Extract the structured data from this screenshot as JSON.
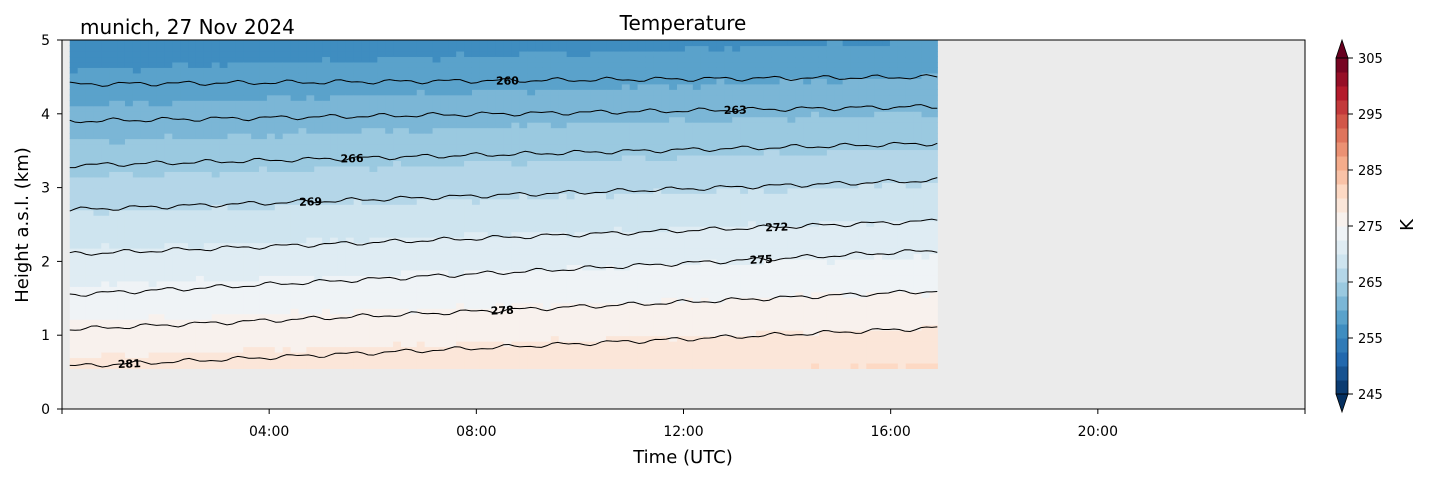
{
  "chart_data": {
    "type": "heatmap",
    "title": "Temperature",
    "location_date": "munich, 27 Nov 2024",
    "xlabel": "Time (UTC)",
    "ylabel": "Height a.s.l. (km)",
    "xlim_hours": [
      0,
      24
    ],
    "ylim_km": [
      0,
      5
    ],
    "x_ticks": [
      {
        "hour": 4,
        "label": "04:00"
      },
      {
        "hour": 8,
        "label": "08:00"
      },
      {
        "hour": 12,
        "label": "12:00"
      },
      {
        "hour": 16,
        "label": "16:00"
      },
      {
        "hour": 20,
        "label": "20:00"
      }
    ],
    "y_ticks": [
      {
        "value": 0,
        "label": "0"
      },
      {
        "value": 1,
        "label": "1"
      },
      {
        "value": 2,
        "label": "2"
      },
      {
        "value": 3,
        "label": "3"
      },
      {
        "value": 4,
        "label": "4"
      },
      {
        "value": 5,
        "label": "5"
      }
    ],
    "data_time_range_hours": [
      0.15,
      16.9
    ],
    "data_height_range_km": [
      0.55,
      5.0
    ],
    "no_data_color": "#ebebeb",
    "surface_temperature_K": {
      "start": 281.2,
      "end": 283.2
    },
    "lapse_rate_K_per_km": 5.15,
    "contours": [
      {
        "level": 260,
        "label": "260",
        "height_start_km": 4.4,
        "height_end_km": 4.5,
        "label_hour": 8.6
      },
      {
        "level": 263,
        "label": "263",
        "height_start_km": 3.9,
        "height_end_km": 4.1,
        "label_hour": 13.0
      },
      {
        "level": 266,
        "label": "266",
        "height_start_km": 3.3,
        "height_end_km": 3.6,
        "label_hour": 5.6
      },
      {
        "level": 269,
        "label": "269",
        "height_start_km": 2.7,
        "height_end_km": 3.1,
        "label_hour": 4.8
      },
      {
        "level": 272,
        "label": "272",
        "height_start_km": 2.1,
        "height_end_km": 2.55,
        "label_hour": 13.8
      },
      {
        "level": 275,
        "label": "275",
        "height_start_km": 1.55,
        "height_end_km": 2.15,
        "label_hour": 13.5
      },
      {
        "level": 278,
        "label": "278",
        "height_start_km": 1.08,
        "height_end_km": 1.6,
        "label_hour": 8.5
      },
      {
        "level": 281,
        "label": "281",
        "height_start_km": 0.58,
        "height_end_km": 1.1,
        "label_hour": 1.3
      }
    ],
    "colorbar": {
      "label": "K",
      "min": 245,
      "max": 305,
      "step": 2.5,
      "extend": "both",
      "colormap": "RdBu_r",
      "ticks": [
        {
          "value": 245,
          "label": "245"
        },
        {
          "value": 255,
          "label": "255"
        },
        {
          "value": 265,
          "label": "265"
        },
        {
          "value": 275,
          "label": "275"
        },
        {
          "value": 285,
          "label": "285"
        },
        {
          "value": 295,
          "label": "295"
        },
        {
          "value": 305,
          "label": "305"
        }
      ]
    }
  }
}
